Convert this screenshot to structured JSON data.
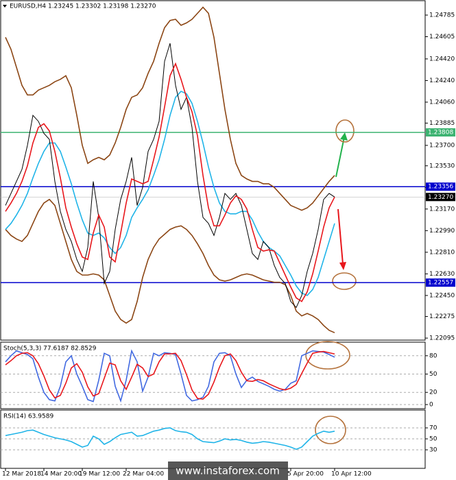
{
  "chart_data": [
    {
      "type": "line",
      "title": "EURUSD,H4  1.23245 1.23302 1.23198 1.23270",
      "categories": [
        "12 Mar 2018",
        null,
        null,
        null,
        null,
        null,
        null,
        "14 Mar 20:00",
        null,
        null,
        null,
        null,
        null,
        null,
        "19 Mar 12:00",
        null,
        null,
        null,
        null,
        null,
        null,
        null,
        "22 Mar 04:00",
        null,
        null,
        null,
        null,
        null,
        null,
        null,
        null,
        null,
        null,
        null,
        null,
        null,
        null,
        null,
        null,
        null,
        null,
        null,
        null,
        null,
        null,
        null,
        null,
        null,
        null,
        null,
        null,
        null,
        "5 Apr 20:00",
        null,
        null,
        null,
        null,
        null,
        null,
        null,
        "10 Apr 12:00"
      ],
      "ylim": [
        1.22084,
        1.24882
      ],
      "yticks": [
        1.24785,
        1.24605,
        {
          "value": 1.2442,
          "label": "1.24420"
        },
        {
          "value": 1.2424,
          "label": "1.24240"
        },
        {
          "value": 1.2406,
          "label": "1.24060"
        },
        1.23885,
        {
          "value": 1.237,
          "label": "1.23700"
        },
        {
          "value": 1.2353,
          "label": "1.23530"
        },
        {
          "value": 1.2335,
          "label": "1.23350"
        },
        {
          "value": 1.2317,
          "label": "1.23170"
        },
        {
          "value": 1.2299,
          "label": "1.22990"
        },
        {
          "value": 1.2281,
          "label": "1.22810"
        },
        {
          "value": 1.2263,
          "label": "1.22630"
        },
        {
          "value": 1.2245,
          "label": "1.22450"
        },
        1.22275,
        1.22095
      ],
      "grid": false,
      "levels": [
        {
          "value": 1.23808,
          "color": "#3cb371"
        },
        {
          "value": 1.23356,
          "color": "#0000cd"
        },
        {
          "value": 1.22557,
          "color": "#0000cd"
        }
      ],
      "last": {
        "value": 1.2327,
        "label": "1.23270"
      },
      "series": [
        {
          "color": "#8b4513",
          "values": [
            1.246,
            1.245,
            1.2435,
            1.242,
            1.2412,
            1.2412,
            1.2416,
            1.2418,
            1.242,
            1.2423,
            1.2425,
            1.2428,
            1.2418,
            1.2395,
            1.237,
            1.2355,
            1.2358,
            1.236,
            1.2358,
            1.2362,
            1.2372,
            1.2385,
            1.24,
            1.241,
            1.2412,
            1.2418,
            1.243,
            1.244,
            1.2455,
            1.2468,
            1.2474,
            1.2475,
            1.247,
            1.2472,
            1.2475,
            1.248,
            1.2485,
            1.248,
            1.246,
            1.243,
            1.24,
            1.2375,
            1.2355,
            1.2345,
            1.2342,
            1.234,
            1.234,
            1.2338,
            1.2338,
            1.2335,
            1.233,
            1.2325,
            1.232,
            1.2318,
            1.2316,
            1.2318,
            1.2322,
            1.2328,
            1.2334,
            1.234,
            1.2345
          ]
        },
        {
          "color": "#8b4513",
          "values": [
            1.23,
            1.2295,
            1.2292,
            1.229,
            1.2295,
            1.2305,
            1.2315,
            1.2322,
            1.2325,
            1.232,
            1.2305,
            1.229,
            1.2275,
            1.2265,
            1.2262,
            1.2262,
            1.2263,
            1.2262,
            1.2258,
            1.2245,
            1.2232,
            1.2225,
            1.2222,
            1.2225,
            1.224,
            1.226,
            1.2275,
            1.2285,
            1.2292,
            1.2296,
            1.23,
            1.2302,
            1.2303,
            1.23,
            1.2295,
            1.2288,
            1.228,
            1.227,
            1.2262,
            1.2258,
            1.2257,
            1.2258,
            1.226,
            1.2262,
            1.2263,
            1.2262,
            1.226,
            1.2258,
            1.2257,
            1.2256,
            1.2256,
            1.2254,
            1.2245,
            1.2232,
            1.2228,
            1.223,
            1.2228,
            1.2225,
            1.222,
            1.2216,
            1.2214
          ]
        },
        {
          "color": "#1fb4e8",
          "values": [
            1.23,
            1.2305,
            1.2312,
            1.232,
            1.233,
            1.2343,
            1.2355,
            1.2365,
            1.2372,
            1.2372,
            1.2365,
            1.2352,
            1.2338,
            1.2322,
            1.2308,
            1.2297,
            1.2295,
            1.2297,
            1.2293,
            1.2285,
            1.228,
            1.2285,
            1.2295,
            1.231,
            1.2318,
            1.2325,
            1.2333,
            1.2345,
            1.2358,
            1.2375,
            1.2395,
            1.241,
            1.2415,
            1.2413,
            1.2405,
            1.239,
            1.2372,
            1.2352,
            1.2335,
            1.2322,
            1.2315,
            1.2313,
            1.2313,
            1.2315,
            1.2315,
            1.2308,
            1.2298,
            1.229,
            1.2285,
            1.2282,
            1.2278,
            1.227,
            1.2262,
            1.2253,
            1.2247,
            1.2245,
            1.225,
            1.226,
            1.2275,
            1.229,
            1.2305
          ]
        },
        {
          "color": "#000000",
          "values": [
            1.232,
            1.233,
            1.234,
            1.235,
            1.237,
            1.2395,
            1.239,
            1.238,
            1.2375,
            1.234,
            1.2315,
            1.23,
            1.229,
            1.2275,
            1.2265,
            1.2285,
            1.234,
            1.231,
            1.2255,
            1.2265,
            1.23,
            1.2325,
            1.234,
            1.236,
            1.232,
            1.2335,
            1.2365,
            1.2375,
            1.239,
            1.244,
            1.2455,
            1.242,
            1.24,
            1.241,
            1.2385,
            1.234,
            1.231,
            1.2305,
            1.2295,
            1.231,
            1.233,
            1.2325,
            1.233,
            1.232,
            1.23,
            1.228,
            1.2275,
            1.229,
            1.2285,
            1.227,
            1.226,
            1.2255,
            1.224,
            1.2235,
            1.2245,
            1.2265,
            1.228,
            1.23,
            1.2325,
            1.233,
            1.2327
          ]
        },
        {
          "color": "#e8161b",
          "values": [
            1.2315,
            1.2322,
            1.233,
            1.234,
            1.2353,
            1.2372,
            1.2385,
            1.2388,
            1.2382,
            1.2365,
            1.2343,
            1.2318,
            1.2302,
            1.2288,
            1.2277,
            1.2275,
            1.2297,
            1.2312,
            1.2302,
            1.2277,
            1.2273,
            1.2297,
            1.2322,
            1.2342,
            1.234,
            1.2338,
            1.234,
            1.2358,
            1.2377,
            1.2402,
            1.2428,
            1.2438,
            1.2425,
            1.241,
            1.2398,
            1.2378,
            1.2345,
            1.2318,
            1.2303,
            1.2303,
            1.2312,
            1.2322,
            1.2328,
            1.2325,
            1.2317,
            1.23,
            1.2285,
            1.2282,
            1.2283,
            1.2282,
            1.2272,
            1.2262,
            1.2252,
            1.2243,
            1.224,
            1.2248,
            1.2263,
            1.2282,
            1.2302,
            1.2318,
            1.2327
          ]
        }
      ]
    },
    {
      "type": "line",
      "title": "Stoch(5,3,3) 77.6187 82.8529",
      "ylim": [
        0,
        100
      ],
      "yticks": [
        0,
        20,
        50,
        80
      ],
      "grid": true,
      "series": [
        {
          "color": "#4169e1",
          "values": [
            70,
            80,
            88,
            85,
            82,
            75,
            45,
            20,
            8,
            6,
            30,
            70,
            80,
            50,
            30,
            8,
            5,
            40,
            84,
            80,
            30,
            6,
            40,
            88,
            70,
            22,
            45,
            84,
            80,
            85,
            84,
            82,
            50,
            15,
            6,
            8,
            12,
            30,
            70,
            84,
            85,
            80,
            50,
            28,
            40,
            45,
            38,
            34,
            30,
            25,
            22,
            25,
            35,
            39,
            80,
            84,
            88,
            87,
            86,
            82,
            77.6187
          ]
        },
        {
          "color": "#e8161b",
          "values": [
            65,
            72,
            80,
            84,
            85,
            80,
            67,
            47,
            24,
            11,
            15,
            35,
            60,
            67,
            53,
            29,
            14,
            18,
            43,
            68,
            65,
            39,
            25,
            45,
            66,
            60,
            46,
            50,
            70,
            83,
            83,
            84,
            72,
            49,
            24,
            10,
            9,
            17,
            37,
            61,
            80,
            83,
            72,
            53,
            39,
            38,
            41,
            39,
            34,
            30,
            26,
            24,
            27,
            33,
            51,
            68,
            84,
            86,
            87,
            85,
            82.8529
          ]
        }
      ]
    },
    {
      "type": "line",
      "title": "RSI(14) 63.9589",
      "ylim": [
        0,
        100
      ],
      "yticks": [
        30,
        50,
        70
      ],
      "grid": true,
      "series": [
        {
          "color": "#1fb4e8",
          "values": [
            56,
            58,
            60,
            62,
            65,
            66,
            62,
            58,
            55,
            52,
            50,
            48,
            45,
            40,
            35,
            38,
            55,
            50,
            40,
            45,
            52,
            58,
            60,
            62,
            55,
            56,
            60,
            64,
            66,
            69,
            70,
            65,
            63,
            62,
            58,
            50,
            45,
            44,
            43,
            46,
            50,
            48,
            49,
            47,
            44,
            42,
            43,
            45,
            44,
            42,
            40,
            38,
            35,
            31,
            35,
            45,
            55,
            60,
            64,
            62,
            63.9589
          ]
        }
      ]
    }
  ],
  "watermark": "www.instaforex.com"
}
